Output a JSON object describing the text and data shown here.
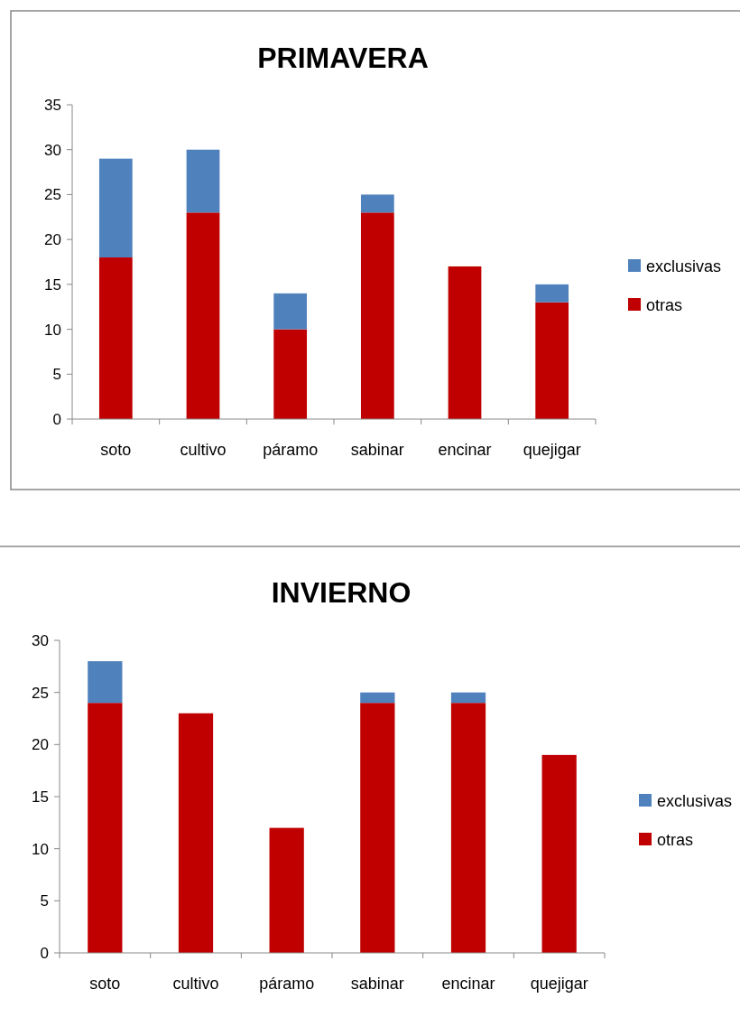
{
  "chart_data": [
    {
      "type": "bar",
      "title": "PRIMAVERA",
      "categories": [
        "soto",
        "cultivo",
        "páramo",
        "sabinar",
        "encinar",
        "quejigar"
      ],
      "stacked": true,
      "series": [
        {
          "name": "otras",
          "color": "#c00000",
          "values": [
            18,
            23,
            10,
            23,
            17,
            13
          ]
        },
        {
          "name": "exclusivas",
          "color": "#4f81bd",
          "values": [
            11,
            7,
            4,
            2,
            0,
            2
          ]
        }
      ],
      "ylim": [
        0,
        35
      ],
      "yticks": [
        0,
        5,
        10,
        15,
        20,
        25,
        30,
        35
      ],
      "grid": false,
      "legend": "right"
    },
    {
      "type": "bar",
      "title": "INVIERNO",
      "categories": [
        "soto",
        "cultivo",
        "páramo",
        "sabinar",
        "encinar",
        "quejigar"
      ],
      "stacked": true,
      "series": [
        {
          "name": "otras",
          "color": "#c00000",
          "values": [
            24,
            23,
            12,
            24,
            24,
            19
          ]
        },
        {
          "name": "exclusivas",
          "color": "#4f81bd",
          "values": [
            4,
            0,
            0,
            1,
            1,
            0
          ]
        }
      ],
      "ylim": [
        0,
        30
      ],
      "yticks": [
        0,
        5,
        10,
        15,
        20,
        25,
        30
      ],
      "grid": false,
      "legend": "right"
    }
  ]
}
